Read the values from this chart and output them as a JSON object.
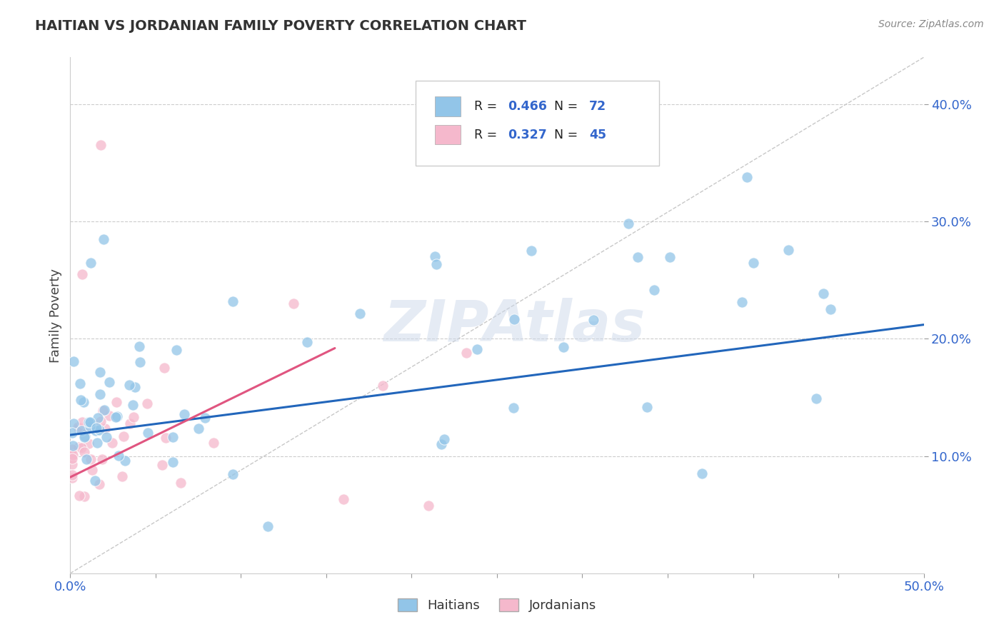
{
  "title": "HAITIAN VS JORDANIAN FAMILY POVERTY CORRELATION CHART",
  "source": "Source: ZipAtlas.com",
  "ylabel": "Family Poverty",
  "xlim": [
    0.0,
    0.5
  ],
  "ylim": [
    0.0,
    0.44
  ],
  "yticks": [
    0.1,
    0.2,
    0.3,
    0.4
  ],
  "ytick_labels": [
    "10.0%",
    "20.0%",
    "30.0%",
    "40.0%"
  ],
  "xticks": [
    0.0,
    0.05,
    0.1,
    0.15,
    0.2,
    0.25,
    0.3,
    0.35,
    0.4,
    0.45,
    0.5
  ],
  "haitian_color": "#92c5e8",
  "jordanian_color": "#f5b8cc",
  "haitian_line_color": "#2266bb",
  "jordanian_line_color": "#e05580",
  "diagonal_color": "#c8c8c8",
  "R_haitian": 0.466,
  "N_haitian": 72,
  "R_jordanian": 0.327,
  "N_jordanian": 45,
  "legend_haitian": "Haitians",
  "legend_jordanian": "Jordanians",
  "watermark": "ZIPAtlas",
  "haitian_reg": [
    0.0,
    0.5,
    0.118,
    0.212
  ],
  "jordanian_reg": [
    0.0,
    0.155,
    0.082,
    0.192
  ]
}
